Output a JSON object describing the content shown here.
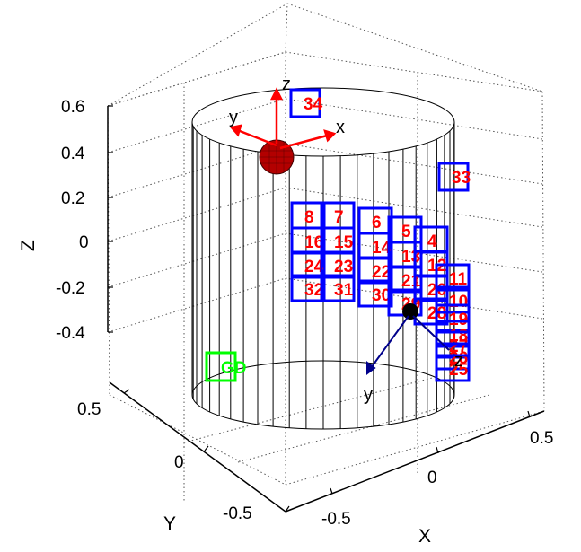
{
  "chart_data": {
    "type": "scatter3d",
    "xlabel": "X",
    "ylabel": "Y",
    "zlabel": "Z",
    "x_ticks": [
      "-0.5",
      "0",
      "0.5"
    ],
    "y_ticks": [
      "-0.5",
      "0",
      "0.5"
    ],
    "z_ticks": [
      "0.6",
      "0.4",
      "0.2",
      "0",
      "-0.2",
      "-0.4"
    ],
    "grid": true,
    "cylinder_color": "#000000",
    "box_color": "#0000ff",
    "box_label_color": "#ff0000",
    "ground_color": "#00ff00",
    "ground_label": "GD",
    "top_frame": {
      "labels": [
        "z",
        "y",
        "x"
      ],
      "axis_color": "#ff0000",
      "sphere_color": "#aa0000"
    },
    "bottom_frame": {
      "labels": [
        "y",
        "z"
      ],
      "axis_color": "#00008b",
      "sphere_color": "#000000"
    },
    "boxes": [
      {
        "label": "34"
      },
      {
        "label": "33"
      },
      {
        "label": "8"
      },
      {
        "label": "7"
      },
      {
        "label": "6"
      },
      {
        "label": "5"
      },
      {
        "label": "4"
      },
      {
        "label": "16"
      },
      {
        "label": "15"
      },
      {
        "label": "14"
      },
      {
        "label": "13"
      },
      {
        "label": "12"
      },
      {
        "label": "24"
      },
      {
        "label": "23"
      },
      {
        "label": "22"
      },
      {
        "label": "21"
      },
      {
        "label": "20"
      },
      {
        "label": "32"
      },
      {
        "label": "31"
      },
      {
        "label": "30"
      },
      {
        "label": "29"
      },
      {
        "label": "28"
      },
      {
        "label": "11"
      },
      {
        "label": "10"
      },
      {
        "label": "19"
      },
      {
        "label": "18"
      },
      {
        "label": "27"
      },
      {
        "label": "26"
      },
      {
        "label": "25"
      }
    ]
  }
}
